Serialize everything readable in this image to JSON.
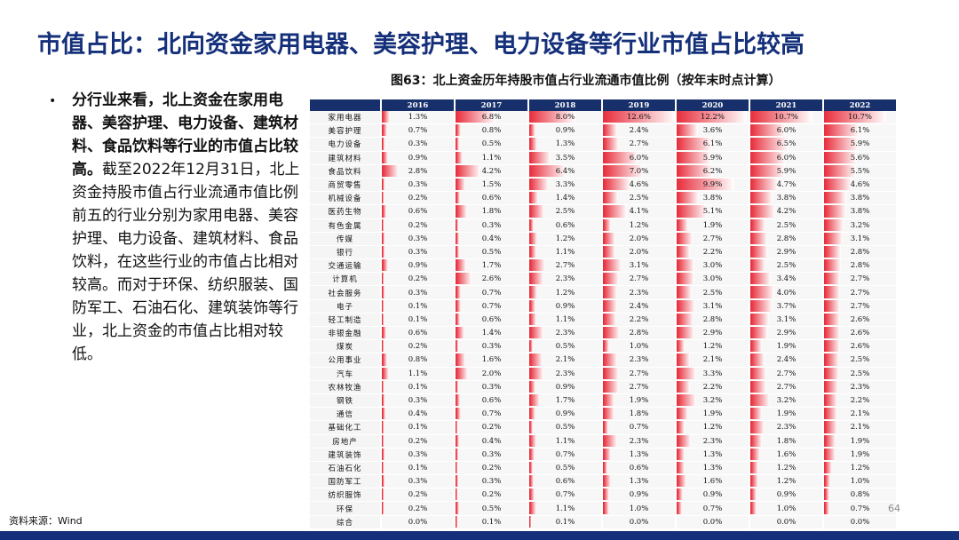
{
  "title": "市值占比：北向资金家用电器、美容护理、电力设备等行业市值占比较高",
  "bullet": {
    "bold": "分行业来看，北上资金在家用电器、美容护理、电力设备、建筑材料、食品饮料等行业的市值占比较高。",
    "rest": "截至2022年12月31日，北上资金持股市值占行业流通市值比例前五的行业分别为家用电器、美容护理、电力设备、建筑材料、食品饮料，在这些行业的市值占比相对较高。而对于环保、纺织服装、国防军工、石油石化、建筑装饰等行业，北上资金的市值占比相对较低。"
  },
  "figure_title": "图63：北上资金历年持股市值占行业流通市值比例（按年末时点计算）",
  "footnote": "资料来源：Wind",
  "page_number": "64",
  "colors": {
    "title": "#15307a",
    "header": "#17306b",
    "bar_strong": "#e8303e",
    "bar_light": "#ffffff"
  },
  "chart_data": {
    "type": "heatmap",
    "columns": [
      "2016",
      "2017",
      "2018",
      "2019",
      "2020",
      "2021",
      "2022"
    ],
    "rows": [
      {
        "label": "家用电器",
        "values": [
          1.3,
          6.8,
          8.0,
          12.6,
          12.2,
          10.7,
          10.7
        ]
      },
      {
        "label": "美容护理",
        "values": [
          0.7,
          0.8,
          0.9,
          2.4,
          3.6,
          6.0,
          6.1
        ]
      },
      {
        "label": "电力设备",
        "values": [
          0.3,
          0.5,
          1.3,
          2.7,
          6.1,
          6.5,
          5.9
        ]
      },
      {
        "label": "建筑材料",
        "values": [
          0.9,
          1.1,
          3.5,
          6.0,
          5.9,
          6.0,
          5.6
        ]
      },
      {
        "label": "食品饮料",
        "values": [
          2.8,
          4.2,
          6.4,
          7.0,
          6.2,
          5.9,
          5.5
        ]
      },
      {
        "label": "商贸零售",
        "values": [
          0.3,
          1.5,
          3.3,
          4.6,
          9.9,
          4.7,
          4.6
        ]
      },
      {
        "label": "机械设备",
        "values": [
          0.2,
          0.6,
          1.4,
          2.5,
          3.8,
          3.8,
          3.8
        ]
      },
      {
        "label": "医药生物",
        "values": [
          0.6,
          1.8,
          2.5,
          4.1,
          5.1,
          4.2,
          3.8
        ]
      },
      {
        "label": "有色金属",
        "values": [
          0.2,
          0.3,
          0.6,
          1.2,
          1.9,
          2.5,
          3.2
        ]
      },
      {
        "label": "传媒",
        "values": [
          0.3,
          0.4,
          1.2,
          2.0,
          2.7,
          2.8,
          3.1
        ]
      },
      {
        "label": "银行",
        "values": [
          0.3,
          0.5,
          1.1,
          2.0,
          2.2,
          2.9,
          2.8
        ]
      },
      {
        "label": "交通运输",
        "values": [
          0.9,
          1.7,
          2.7,
          3.1,
          3.0,
          2.5,
          2.8
        ]
      },
      {
        "label": "计算机",
        "values": [
          0.2,
          2.6,
          2.3,
          2.7,
          3.0,
          3.4,
          2.7
        ]
      },
      {
        "label": "社会服务",
        "values": [
          0.3,
          0.7,
          1.2,
          2.3,
          2.5,
          4.0,
          2.7
        ]
      },
      {
        "label": "电子",
        "values": [
          0.1,
          0.7,
          0.9,
          2.4,
          3.1,
          3.7,
          2.7
        ]
      },
      {
        "label": "轻工制造",
        "values": [
          0.1,
          0.6,
          1.1,
          2.2,
          2.8,
          3.1,
          2.6
        ]
      },
      {
        "label": "非银金融",
        "values": [
          0.6,
          1.4,
          2.3,
          2.8,
          2.9,
          2.9,
          2.6
        ]
      },
      {
        "label": "煤炭",
        "values": [
          0.2,
          0.3,
          0.5,
          1.0,
          1.2,
          1.9,
          2.6
        ]
      },
      {
        "label": "公用事业",
        "values": [
          0.8,
          1.6,
          2.1,
          2.3,
          2.1,
          2.4,
          2.5
        ]
      },
      {
        "label": "汽车",
        "values": [
          1.1,
          2.0,
          2.3,
          2.7,
          3.3,
          2.7,
          2.5
        ]
      },
      {
        "label": "农林牧渔",
        "values": [
          0.1,
          0.3,
          0.9,
          2.7,
          2.2,
          2.7,
          2.3
        ]
      },
      {
        "label": "钢铁",
        "values": [
          0.3,
          0.6,
          1.7,
          1.9,
          3.2,
          3.2,
          2.2
        ]
      },
      {
        "label": "通信",
        "values": [
          0.4,
          0.7,
          0.9,
          1.8,
          1.9,
          1.9,
          2.1
        ]
      },
      {
        "label": "基础化工",
        "values": [
          0.1,
          0.2,
          0.5,
          0.7,
          1.2,
          2.3,
          2.1
        ]
      },
      {
        "label": "房地产",
        "values": [
          0.2,
          0.4,
          1.1,
          2.3,
          2.3,
          1.8,
          1.9
        ]
      },
      {
        "label": "建筑装饰",
        "values": [
          0.3,
          0.3,
          0.7,
          1.3,
          1.3,
          1.6,
          1.9
        ]
      },
      {
        "label": "石油石化",
        "values": [
          0.1,
          0.2,
          0.5,
          0.6,
          1.3,
          1.2,
          1.2
        ]
      },
      {
        "label": "国防军工",
        "values": [
          0.3,
          0.3,
          0.6,
          1.3,
          1.6,
          1.2,
          1.0
        ]
      },
      {
        "label": "纺织服饰",
        "values": [
          0.2,
          0.2,
          0.7,
          0.9,
          0.9,
          0.9,
          0.8
        ]
      },
      {
        "label": "环保",
        "values": [
          0.2,
          0.5,
          1.1,
          1.0,
          0.7,
          1.0,
          0.7
        ]
      },
      {
        "label": "综合",
        "values": [
          0.0,
          0.1,
          0.1,
          0.0,
          0.0,
          0.0,
          0.0
        ]
      }
    ],
    "value_suffix": "%",
    "max_value": 12.6
  }
}
